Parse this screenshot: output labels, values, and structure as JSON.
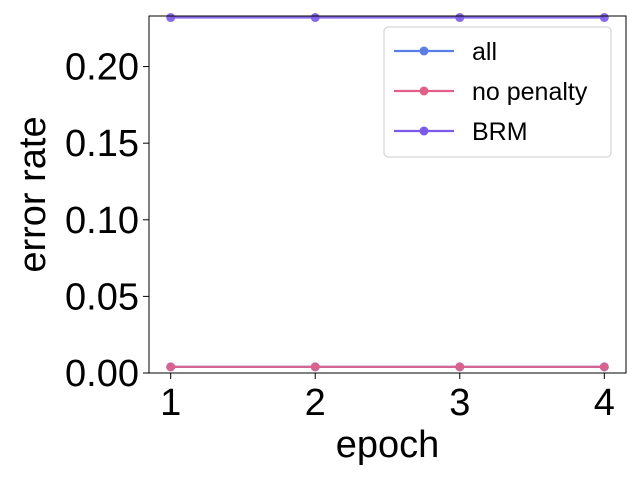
{
  "chart_data": {
    "type": "line",
    "title": "",
    "xlabel": "epoch",
    "ylabel": "error rate",
    "x": [
      1,
      2,
      3,
      4
    ],
    "xlim": [
      0.85,
      4.15
    ],
    "ylim": [
      0.0,
      0.233
    ],
    "xticks": [
      1,
      2,
      3,
      4
    ],
    "xtick_labels": [
      "1",
      "2",
      "3",
      "4"
    ],
    "yticks": [
      0.0,
      0.05,
      0.1,
      0.15,
      0.2
    ],
    "ytick_labels": [
      "0.00",
      "0.05",
      "0.10",
      "0.15",
      "0.20"
    ],
    "grid": false,
    "legend_position": "top-right",
    "series": [
      {
        "name": "all",
        "color": "#5b7ee5",
        "values": [
          0.004,
          0.004,
          0.004,
          0.004
        ]
      },
      {
        "name": "no penalty",
        "color": "#e0608a",
        "values": [
          0.004,
          0.004,
          0.004,
          0.004
        ]
      },
      {
        "name": "BRM",
        "color": "#7b5be8",
        "values": [
          0.232,
          0.232,
          0.232,
          0.232
        ]
      }
    ]
  }
}
